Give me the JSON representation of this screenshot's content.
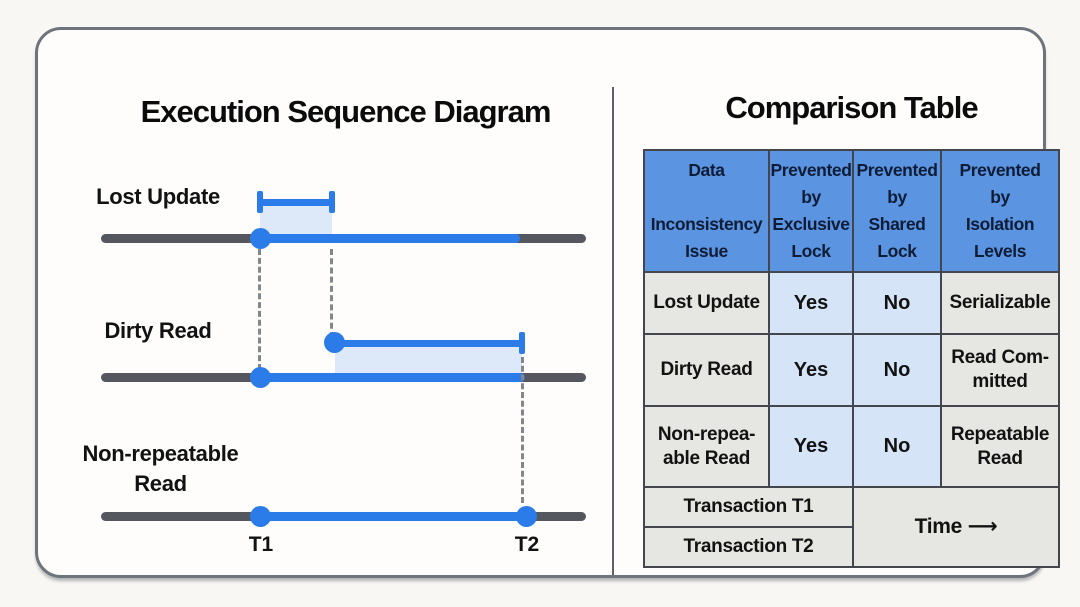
{
  "card": {
    "left": {
      "title": "Execution Sequence Diagram",
      "timelines": [
        {
          "label": "Lost Update"
        },
        {
          "label": "Dirty Read"
        },
        {
          "label": "Non-repeatable\nRead"
        }
      ],
      "axis_markers": {
        "t1": "T1",
        "t2": "T2"
      }
    },
    "right": {
      "title": "Comparison Table",
      "table": {
        "headers": [
          "Data\n\nInconsistency\nIssue",
          "Prevented\nby\nExclusive\nLock",
          "Prevented\nby\nShared\nLock",
          "Prevented\nby\nIsolation\nLevels"
        ],
        "rows": [
          [
            "Lost Update",
            "Yes",
            "No",
            "Serializable"
          ],
          [
            "Dirty Read",
            "Yes",
            "No",
            "Read Com-\nmitted"
          ],
          [
            "Non-repea-\nable Read",
            "Yes",
            "No",
            "Repeatable\nRead"
          ]
        ],
        "footer": {
          "transaction_t1": "Transaction T1",
          "transaction_t2": "Transaction T2",
          "time_label": "Time ⟶"
        }
      }
    }
  },
  "colors": {
    "accent-blue": "#2b7ce9",
    "shade-blue": "#d9e6f8",
    "track-gray": "#54585e",
    "dash-gray": "#83878c",
    "header-blue": "#5b95e2",
    "cell-blue": "#d5e4f7",
    "cell-gray": "#e6e6e2",
    "table-border": "#43474d",
    "header-text": "#0e1c36",
    "card-border": "#6e747b",
    "card-bg": "#fefdfb",
    "page-bg": "#f9f7f4",
    "text-black": "#121212"
  }
}
